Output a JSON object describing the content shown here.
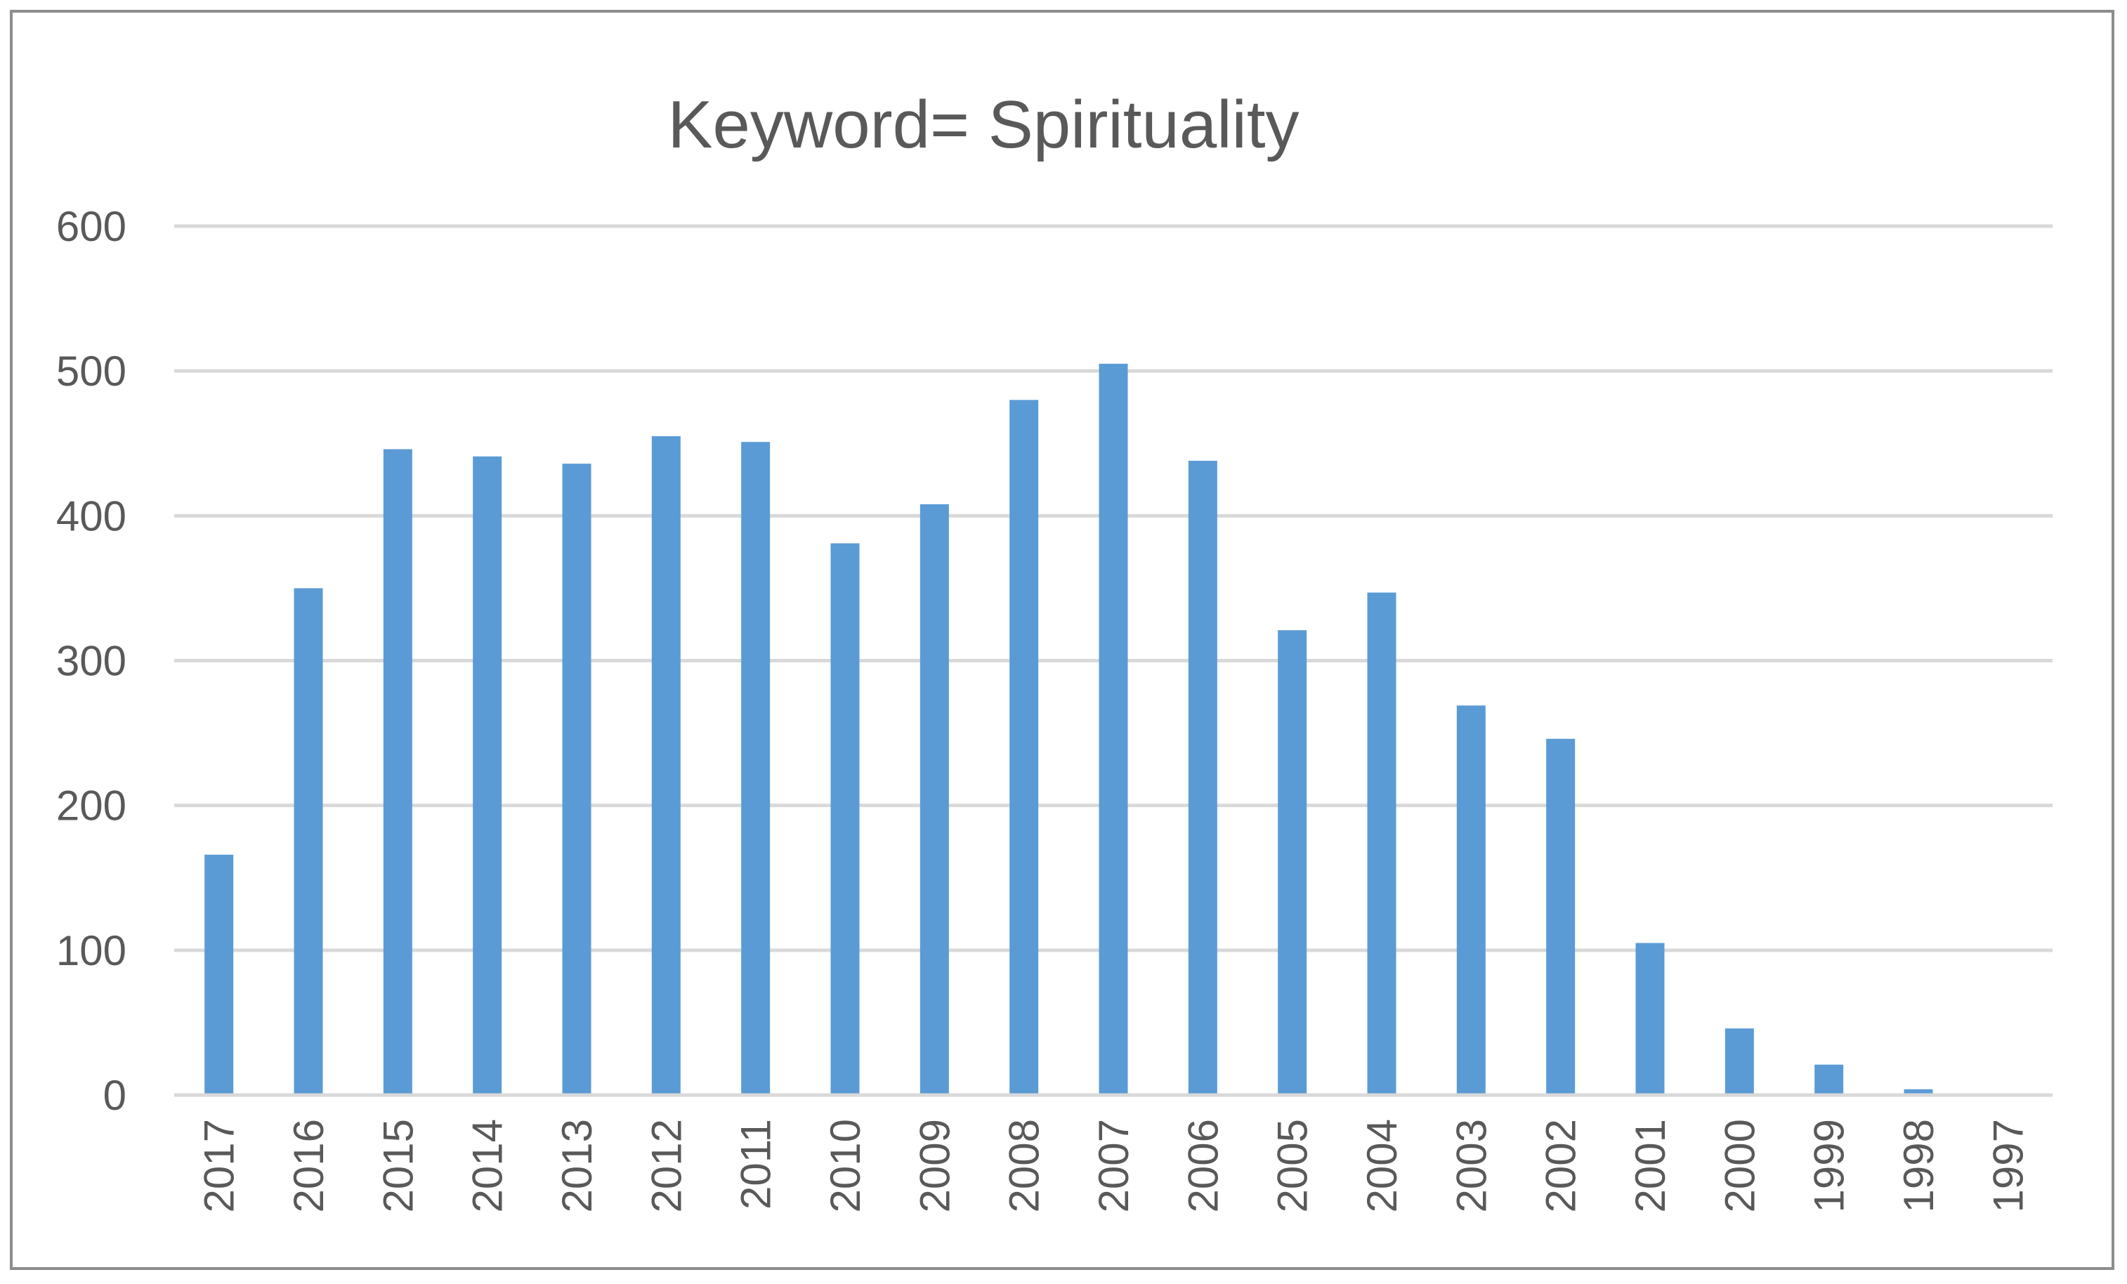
{
  "chart_data": {
    "type": "bar",
    "title": "Keyword= Spirituality",
    "xlabel": "",
    "ylabel": "",
    "categories": [
      "2017",
      "2016",
      "2015",
      "2014",
      "2013",
      "2012",
      "2011",
      "2010",
      "2009",
      "2008",
      "2007",
      "2006",
      "2005",
      "2004",
      "2003",
      "2002",
      "2001",
      "2000",
      "1999",
      "1998",
      "1997"
    ],
    "values": [
      166,
      350,
      446,
      441,
      436,
      455,
      451,
      381,
      408,
      480,
      505,
      438,
      321,
      347,
      269,
      246,
      105,
      46,
      21,
      4,
      0
    ],
    "ylim": [
      0,
      600
    ],
    "yticks": [
      "0",
      "100",
      "200",
      "300",
      "400",
      "500",
      "600"
    ],
    "grid": true,
    "legend": "none",
    "colors": {
      "bar": "#5b9bd5",
      "grid": "#d9d9d9",
      "text": "#595959",
      "border": "#8c8c8c"
    }
  }
}
